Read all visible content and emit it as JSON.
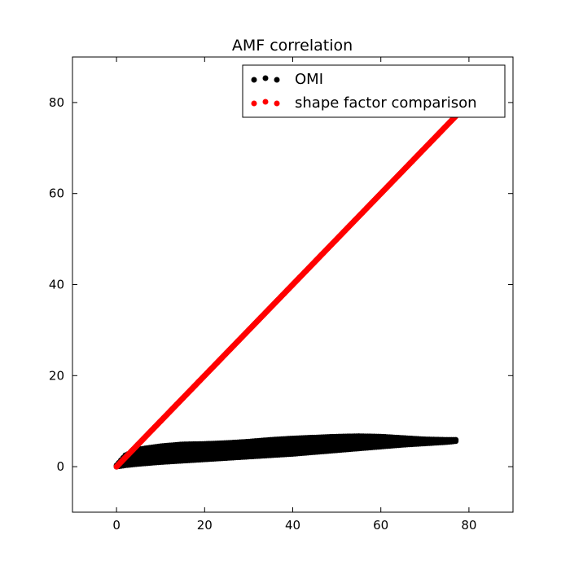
{
  "chart_data": {
    "type": "scatter",
    "title": "AMF correlation",
    "xlabel": "",
    "ylabel": "",
    "xlim": [
      -10,
      90
    ],
    "ylim": [
      -10,
      90
    ],
    "xticks": [
      0,
      20,
      40,
      60,
      80
    ],
    "yticks": [
      0,
      20,
      40,
      60,
      80
    ],
    "grid": false,
    "legend_position": "top-right",
    "series": [
      {
        "name": "OMI",
        "color": "#000000",
        "x": [
          0,
          2,
          5,
          10,
          15,
          20,
          25,
          30,
          35,
          40,
          45,
          50,
          55,
          60,
          65,
          70,
          75,
          77
        ],
        "y_low": [
          0,
          0.3,
          0.6,
          1.0,
          1.3,
          1.6,
          1.9,
          2.2,
          2.5,
          2.8,
          3.2,
          3.6,
          4.0,
          4.4,
          4.8,
          5.1,
          5.4,
          5.6
        ],
        "y_high": [
          0.3,
          2.5,
          3.8,
          4.5,
          4.9,
          5.0,
          5.2,
          5.5,
          5.9,
          6.2,
          6.4,
          6.6,
          6.7,
          6.6,
          6.3,
          6.0,
          5.9,
          5.9
        ]
      },
      {
        "name": "shape factor comparison",
        "color": "#ff0000",
        "x": [
          0,
          77
        ],
        "y": [
          0,
          77
        ]
      }
    ]
  }
}
